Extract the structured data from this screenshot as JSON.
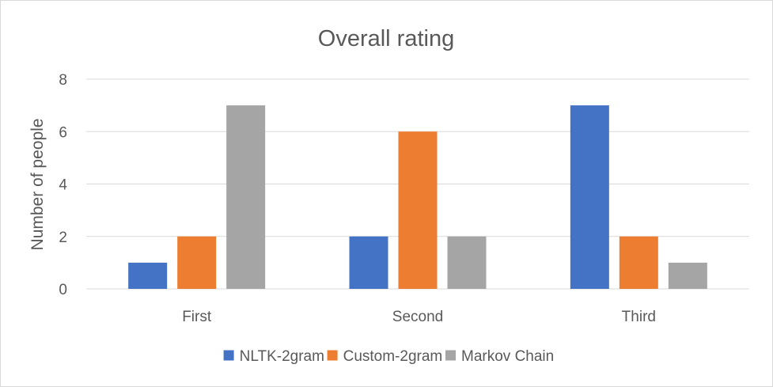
{
  "chart_data": {
    "type": "bar",
    "title": "Overall rating",
    "xlabel": "",
    "ylabel": "Number of people",
    "categories": [
      "First",
      "Second",
      "Third"
    ],
    "series": [
      {
        "name": "NLTK-2gram",
        "color": "#4472c4",
        "values": [
          1,
          2,
          7
        ]
      },
      {
        "name": "Custom-2gram",
        "color": "#ed7d31",
        "values": [
          2,
          6,
          2
        ]
      },
      {
        "name": "Markov Chain",
        "color": "#a5a5a5",
        "values": [
          7,
          2,
          1
        ]
      }
    ],
    "ylim": [
      0,
      8
    ],
    "yticks": [
      0,
      2,
      4,
      6,
      8
    ],
    "grid": true,
    "legend_position": "bottom"
  }
}
